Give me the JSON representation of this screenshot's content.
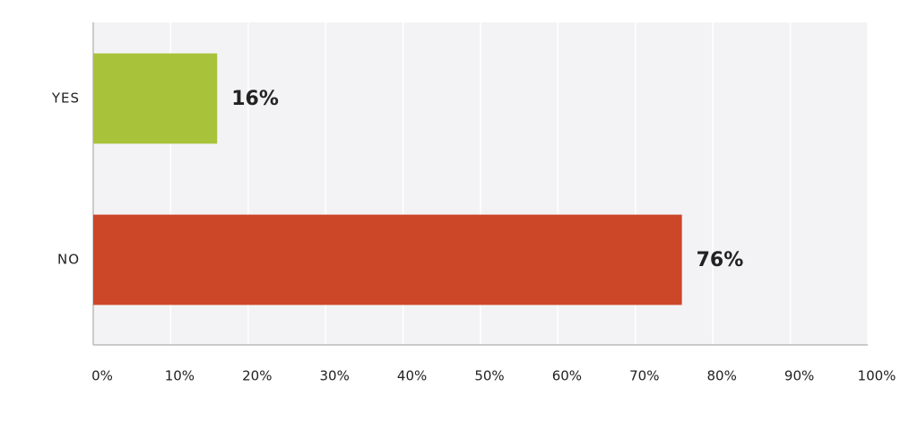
{
  "chart_data": {
    "type": "hbar",
    "categories": [
      "YES",
      "NO"
    ],
    "values": [
      16,
      76
    ],
    "value_labels": [
      "16%",
      "76%"
    ],
    "colors": [
      "#a8c23a",
      "#cc4628"
    ],
    "xlim": [
      0,
      100
    ],
    "xticks": [
      {
        "value": 0,
        "label": "0%"
      },
      {
        "value": 10,
        "label": "10%"
      },
      {
        "value": 20,
        "label": "20%"
      },
      {
        "value": 30,
        "label": "30%"
      },
      {
        "value": 40,
        "label": "40%"
      },
      {
        "value": 50,
        "label": "50%"
      },
      {
        "value": 60,
        "label": "60%"
      },
      {
        "value": 70,
        "label": "70%"
      },
      {
        "value": 80,
        "label": "80%"
      },
      {
        "value": 90,
        "label": "90%"
      },
      {
        "value": 100,
        "label": "100%"
      }
    ],
    "grid": true
  }
}
